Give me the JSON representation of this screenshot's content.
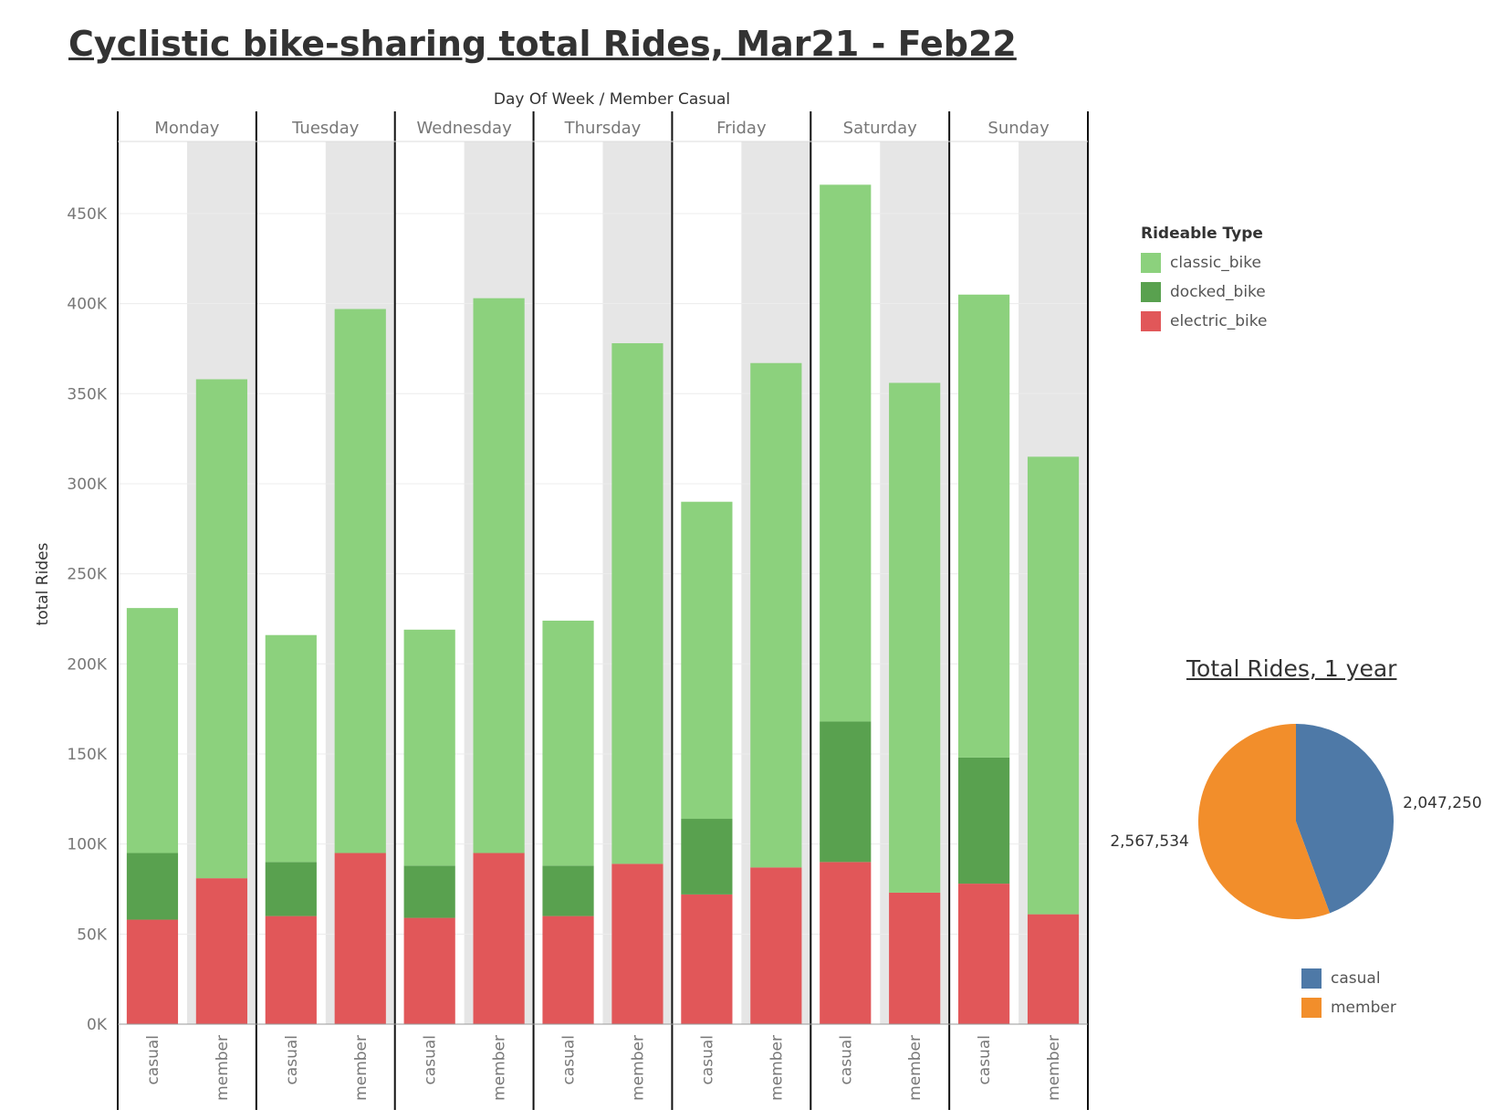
{
  "title": "Cyclistic bike-sharing total Rides, Mar21 - Feb22",
  "chart_data": [
    {
      "type": "bar",
      "stacked": true,
      "header": "Day Of Week  /  Member Casual",
      "ylabel": "total Rides",
      "ylim": [
        0,
        490000
      ],
      "yticks": [
        0,
        50000,
        100000,
        150000,
        200000,
        250000,
        300000,
        350000,
        400000,
        450000
      ],
      "ytick_labels": [
        "0K",
        "50K",
        "100K",
        "150K",
        "200K",
        "250K",
        "300K",
        "350K",
        "400K",
        "450K"
      ],
      "groups": [
        "Monday",
        "Tuesday",
        "Wednesday",
        "Thursday",
        "Friday",
        "Saturday",
        "Sunday"
      ],
      "subcategories": [
        "casual",
        "member"
      ],
      "legend_title": "Rideable Type",
      "legend_placement": "right",
      "series": [
        {
          "name": "electric_bike",
          "color": "#e15759",
          "values": [
            58000,
            81000,
            60000,
            95000,
            59000,
            95000,
            60000,
            89000,
            72000,
            87000,
            90000,
            73000,
            78000,
            61000
          ]
        },
        {
          "name": "docked_bike",
          "color": "#59a14f",
          "values": [
            37000,
            0,
            30000,
            0,
            29000,
            0,
            28000,
            0,
            42000,
            0,
            78000,
            0,
            70000,
            0
          ]
        },
        {
          "name": "classic_bike",
          "color": "#8cd17d",
          "values": [
            136000,
            277000,
            126000,
            302000,
            131000,
            308000,
            136000,
            289000,
            176000,
            280000,
            298000,
            283000,
            257000,
            254000
          ]
        }
      ]
    },
    {
      "type": "pie",
      "title": "Total Rides, 1 year",
      "legend_placement": "bottom-right",
      "slices": [
        {
          "name": "casual",
          "value": 2047250,
          "label": "2,047,250",
          "color": "#4e79a7"
        },
        {
          "name": "member",
          "value": 2567534,
          "label": "2,567,534",
          "color": "#f28e2b"
        }
      ]
    }
  ]
}
